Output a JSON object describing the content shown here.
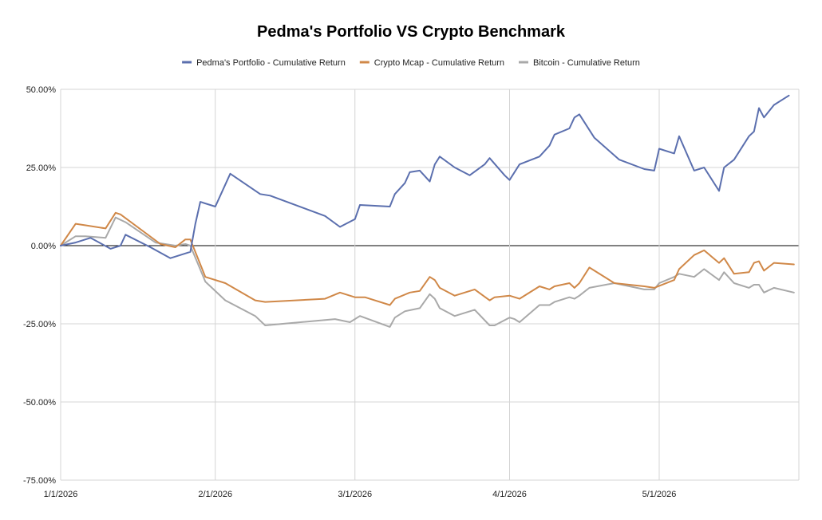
{
  "chart_data": {
    "type": "line",
    "title": "Pedma's Portfolio VS Crypto Benchmark",
    "xlabel": "",
    "ylabel": "",
    "ylim": [
      -75,
      50
    ],
    "y_tick_values": [
      50,
      25,
      0,
      -25,
      -50,
      -75
    ],
    "y_tick_labels": [
      "50.00%",
      "25.00%",
      "0.00%",
      "-25.00%",
      "-50.00%",
      "-75.00%"
    ],
    "x_range": [
      "2026-01-01",
      "2026-05-29"
    ],
    "x_ticks": [
      {
        "date": "2026-01-01",
        "label": "1/1/2026"
      },
      {
        "date": "2026-02-01",
        "label": "2/1/2026"
      },
      {
        "date": "2026-03-01",
        "label": "3/1/2026"
      },
      {
        "date": "2026-04-01",
        "label": "4/1/2026"
      },
      {
        "date": "2026-05-01",
        "label": "5/1/2026"
      }
    ],
    "grid": true,
    "legend_position": "top",
    "series": [
      {
        "name": "Pedma's Portfolio - Cumulative Return",
        "color": "#5b6fae",
        "points": [
          [
            "2026-01-01",
            0
          ],
          [
            "2026-01-04",
            1
          ],
          [
            "2026-01-07",
            2.5
          ],
          [
            "2026-01-11",
            -1
          ],
          [
            "2026-01-13",
            0
          ],
          [
            "2026-01-14",
            3.5
          ],
          [
            "2026-01-19",
            -0.5
          ],
          [
            "2026-01-23",
            -4
          ],
          [
            "2026-01-27",
            -2
          ],
          [
            "2026-01-28",
            7
          ],
          [
            "2026-01-29",
            14
          ],
          [
            "2026-02-01",
            12.5
          ],
          [
            "2026-02-04",
            23
          ],
          [
            "2026-02-10",
            16.5
          ],
          [
            "2026-02-12",
            16
          ],
          [
            "2026-02-23",
            9.5
          ],
          [
            "2026-02-26",
            6
          ],
          [
            "2026-03-01",
            8.5
          ],
          [
            "2026-03-02",
            13
          ],
          [
            "2026-03-08",
            12.5
          ],
          [
            "2026-03-09",
            16.5
          ],
          [
            "2026-03-11",
            20
          ],
          [
            "2026-03-12",
            23.5
          ],
          [
            "2026-03-14",
            24
          ],
          [
            "2026-03-16",
            20.5
          ],
          [
            "2026-03-17",
            26
          ],
          [
            "2026-03-18",
            28.5
          ],
          [
            "2026-03-21",
            25
          ],
          [
            "2026-03-24",
            22.5
          ],
          [
            "2026-03-27",
            26
          ],
          [
            "2026-03-28",
            28
          ],
          [
            "2026-03-31",
            22.5
          ],
          [
            "2026-04-01",
            21
          ],
          [
            "2026-04-03",
            26
          ],
          [
            "2026-04-07",
            28.5
          ],
          [
            "2026-04-09",
            32
          ],
          [
            "2026-04-10",
            35.5
          ],
          [
            "2026-04-13",
            37.5
          ],
          [
            "2026-04-14",
            41
          ],
          [
            "2026-04-15",
            42
          ],
          [
            "2026-04-18",
            34.5
          ],
          [
            "2026-04-23",
            27.5
          ],
          [
            "2026-04-28",
            24.5
          ],
          [
            "2026-04-30",
            24
          ],
          [
            "2026-05-01",
            31
          ],
          [
            "2026-05-04",
            29.5
          ],
          [
            "2026-05-05",
            35
          ],
          [
            "2026-05-08",
            24
          ],
          [
            "2026-05-10",
            25
          ],
          [
            "2026-05-13",
            17.5
          ],
          [
            "2026-05-14",
            25
          ],
          [
            "2026-05-16",
            27.5
          ],
          [
            "2026-05-19",
            35
          ],
          [
            "2026-05-20",
            36.5
          ],
          [
            "2026-05-21",
            44
          ],
          [
            "2026-05-22",
            41
          ],
          [
            "2026-05-24",
            45
          ],
          [
            "2026-05-27",
            48
          ]
        ]
      },
      {
        "name": "Crypto Mcap - Cumulative Return",
        "color": "#d08848",
        "points": [
          [
            "2026-01-01",
            0
          ],
          [
            "2026-01-04",
            7
          ],
          [
            "2026-01-06",
            6.5
          ],
          [
            "2026-01-10",
            5.5
          ],
          [
            "2026-01-12",
            10.5
          ],
          [
            "2026-01-13",
            10
          ],
          [
            "2026-01-21",
            0.5
          ],
          [
            "2026-01-24",
            -0.5
          ],
          [
            "2026-01-26",
            2
          ],
          [
            "2026-01-27",
            2
          ],
          [
            "2026-01-30",
            -10
          ],
          [
            "2026-02-03",
            -12
          ],
          [
            "2026-02-09",
            -17.5
          ],
          [
            "2026-02-11",
            -18
          ],
          [
            "2026-02-23",
            -17
          ],
          [
            "2026-02-26",
            -15
          ],
          [
            "2026-03-01",
            -16.5
          ],
          [
            "2026-03-03",
            -16.5
          ],
          [
            "2026-03-08",
            -19
          ],
          [
            "2026-03-09",
            -17
          ],
          [
            "2026-03-12",
            -15
          ],
          [
            "2026-03-14",
            -14.5
          ],
          [
            "2026-03-16",
            -10
          ],
          [
            "2026-03-17",
            -11
          ],
          [
            "2026-03-18",
            -13.5
          ],
          [
            "2026-03-21",
            -16
          ],
          [
            "2026-03-25",
            -14
          ],
          [
            "2026-03-28",
            -17.5
          ],
          [
            "2026-03-29",
            -16.5
          ],
          [
            "2026-04-01",
            -16
          ],
          [
            "2026-04-03",
            -17
          ],
          [
            "2026-04-07",
            -13
          ],
          [
            "2026-04-09",
            -14
          ],
          [
            "2026-04-10",
            -13
          ],
          [
            "2026-04-13",
            -12
          ],
          [
            "2026-04-14",
            -13.5
          ],
          [
            "2026-04-15",
            -12
          ],
          [
            "2026-04-17",
            -7
          ],
          [
            "2026-04-22",
            -12
          ],
          [
            "2026-04-28",
            -13
          ],
          [
            "2026-04-30",
            -13.5
          ],
          [
            "2026-05-04",
            -11
          ],
          [
            "2026-05-05",
            -7.5
          ],
          [
            "2026-05-08",
            -3
          ],
          [
            "2026-05-10",
            -1.5
          ],
          [
            "2026-05-13",
            -5.5
          ],
          [
            "2026-05-14",
            -4
          ],
          [
            "2026-05-16",
            -9
          ],
          [
            "2026-05-19",
            -8.5
          ],
          [
            "2026-05-20",
            -5.5
          ],
          [
            "2026-05-21",
            -5
          ],
          [
            "2026-05-22",
            -8
          ],
          [
            "2026-05-24",
            -5.5
          ],
          [
            "2026-05-28",
            -6
          ]
        ]
      },
      {
        "name": "Bitcoin - Cumulative Return",
        "color": "#a9a9a9",
        "points": [
          [
            "2026-01-01",
            0
          ],
          [
            "2026-01-04",
            3
          ],
          [
            "2026-01-06",
            3
          ],
          [
            "2026-01-10",
            2.5
          ],
          [
            "2026-01-12",
            9
          ],
          [
            "2026-01-14",
            7.5
          ],
          [
            "2026-01-20",
            1
          ],
          [
            "2026-01-24",
            0
          ],
          [
            "2026-01-26",
            0.5
          ],
          [
            "2026-01-27",
            0
          ],
          [
            "2026-01-30",
            -11.5
          ],
          [
            "2026-02-03",
            -17.5
          ],
          [
            "2026-02-09",
            -22.5
          ],
          [
            "2026-02-11",
            -25.5
          ],
          [
            "2026-02-25",
            -23.5
          ],
          [
            "2026-02-28",
            -24.5
          ],
          [
            "2026-03-02",
            -22.5
          ],
          [
            "2026-03-08",
            -26
          ],
          [
            "2026-03-09",
            -23
          ],
          [
            "2026-03-11",
            -21
          ],
          [
            "2026-03-14",
            -20
          ],
          [
            "2026-03-16",
            -15.5
          ],
          [
            "2026-03-17",
            -17
          ],
          [
            "2026-03-18",
            -20
          ],
          [
            "2026-03-21",
            -22.5
          ],
          [
            "2026-03-25",
            -20.5
          ],
          [
            "2026-03-28",
            -25.5
          ],
          [
            "2026-03-29",
            -25.5
          ],
          [
            "2026-04-01",
            -23
          ],
          [
            "2026-04-02",
            -23.5
          ],
          [
            "2026-04-03",
            -24.5
          ],
          [
            "2026-04-07",
            -19
          ],
          [
            "2026-04-09",
            -19
          ],
          [
            "2026-04-10",
            -18
          ],
          [
            "2026-04-13",
            -16.5
          ],
          [
            "2026-04-14",
            -17
          ],
          [
            "2026-04-15",
            -16
          ],
          [
            "2026-04-17",
            -13.5
          ],
          [
            "2026-04-22",
            -12
          ],
          [
            "2026-04-28",
            -14
          ],
          [
            "2026-04-30",
            -14
          ],
          [
            "2026-05-01",
            -12
          ],
          [
            "2026-05-04",
            -10
          ],
          [
            "2026-05-05",
            -9
          ],
          [
            "2026-05-08",
            -10
          ],
          [
            "2026-05-10",
            -7.5
          ],
          [
            "2026-05-13",
            -11
          ],
          [
            "2026-05-14",
            -8.5
          ],
          [
            "2026-05-16",
            -12
          ],
          [
            "2026-05-19",
            -13.5
          ],
          [
            "2026-05-20",
            -12.5
          ],
          [
            "2026-05-21",
            -12.5
          ],
          [
            "2026-05-22",
            -15
          ],
          [
            "2026-05-24",
            -13.5
          ],
          [
            "2026-05-28",
            -15
          ]
        ]
      }
    ]
  }
}
